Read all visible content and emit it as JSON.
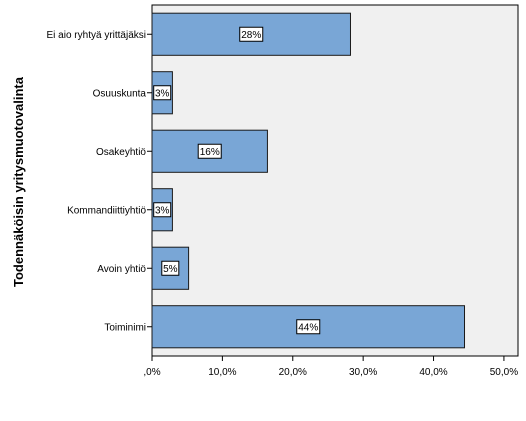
{
  "chart_data": {
    "type": "bar",
    "orientation": "horizontal",
    "title": "",
    "xlabel": "",
    "ylabel": "Todennäköisin yritysmuotovalinta",
    "categories": [
      "Ei aio ryhtyä yrittäjäksi",
      "Osuuskunta",
      "Osakeyhtiö",
      "Kommandiittiyhtiö",
      "Avoin yhtiö",
      "Toiminimi"
    ],
    "values": [
      28.2,
      2.9,
      16.4,
      2.9,
      5.2,
      44.4
    ],
    "data_labels": [
      "28%",
      "3%",
      "16%",
      "3%",
      "5%",
      "44%"
    ],
    "xlim": [
      0,
      52
    ],
    "xticks": [
      0,
      10,
      20,
      30,
      40,
      50
    ],
    "xtick_labels": [
      ",0%",
      "10,0%",
      "20,0%",
      "30,0%",
      "40,0%",
      "50,0%"
    ],
    "grid": false,
    "colors": {
      "bar_fill": "#79a6d6",
      "bar_stroke": "#1a1a1a",
      "plot_bg": "#f0f0f0",
      "axis": "#000000"
    }
  }
}
